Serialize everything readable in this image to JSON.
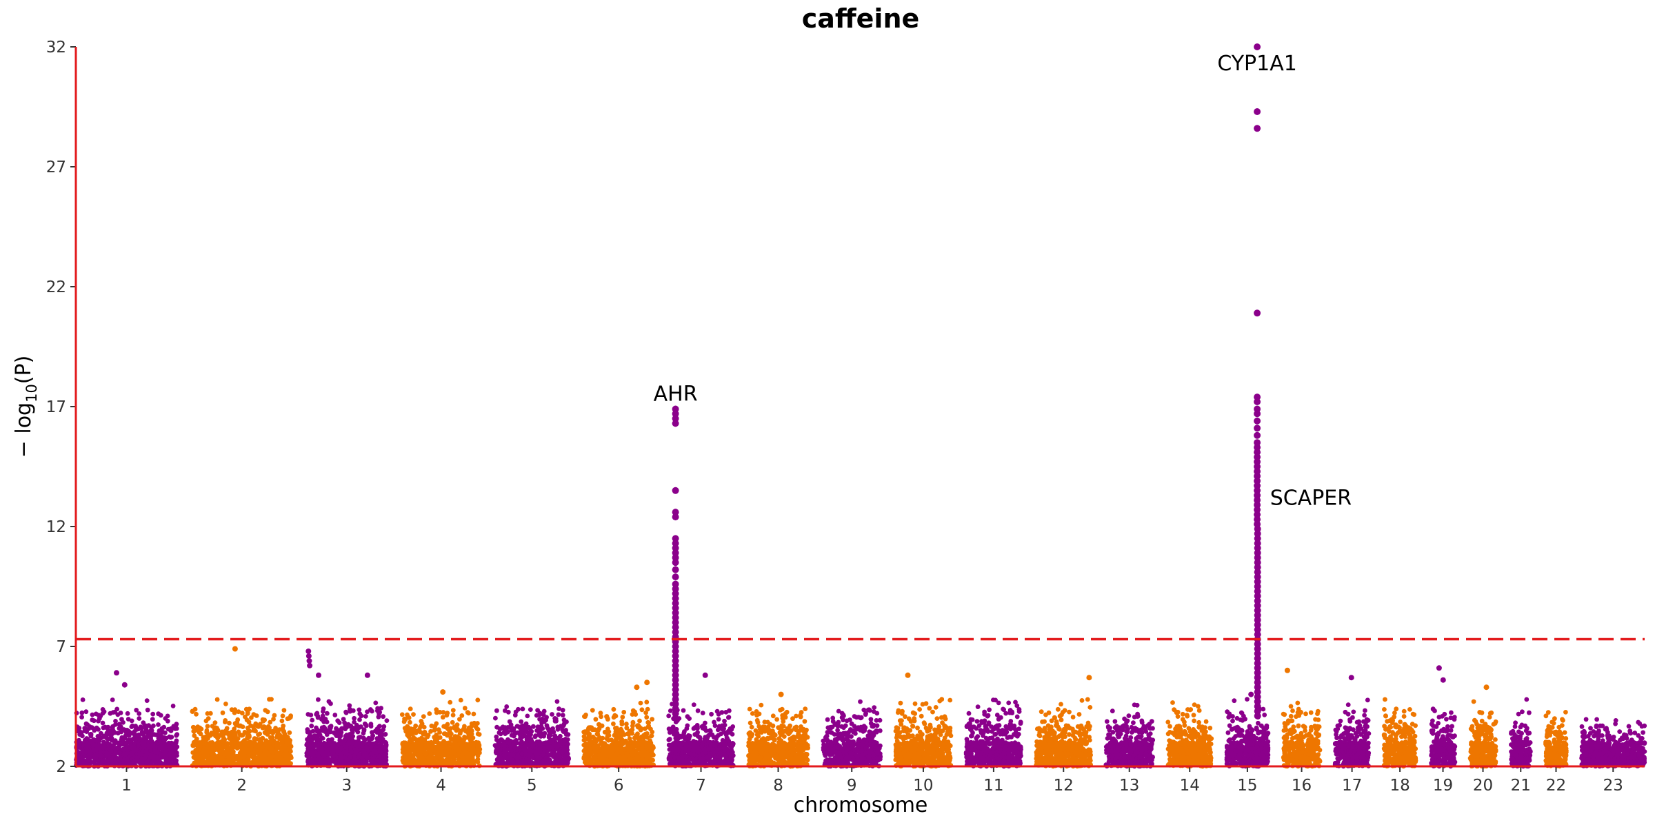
{
  "chart_data": {
    "type": "scatter",
    "title": "caffeine",
    "xlabel": "chromosome",
    "ylabel_main": "− log",
    "ylabel_sub": "10",
    "ylabel_tail": "(P)",
    "ylim": [
      2,
      32
    ],
    "yticks": [
      "2",
      "7",
      "12",
      "17",
      "22",
      "27",
      "32"
    ],
    "significance_line": 7.3,
    "colors": {
      "purple": "#8B008B",
      "orange": "#EE7600",
      "axis": "#E31A1C",
      "threshold": "#E31A1C"
    },
    "chromosomes": [
      {
        "label": "1",
        "len": 249,
        "color": "purple"
      },
      {
        "label": "2",
        "len": 243,
        "color": "orange"
      },
      {
        "label": "3",
        "len": 198,
        "color": "purple"
      },
      {
        "label": "4",
        "len": 191,
        "color": "orange"
      },
      {
        "label": "5",
        "len": 181,
        "color": "purple"
      },
      {
        "label": "6",
        "len": 171,
        "color": "orange"
      },
      {
        "label": "7",
        "len": 159,
        "color": "purple"
      },
      {
        "label": "8",
        "len": 146,
        "color": "orange"
      },
      {
        "label": "9",
        "len": 141,
        "color": "purple"
      },
      {
        "label": "10",
        "len": 136,
        "color": "orange"
      },
      {
        "label": "11",
        "len": 135,
        "color": "purple"
      },
      {
        "label": "12",
        "len": 134,
        "color": "orange"
      },
      {
        "label": "13",
        "len": 115,
        "color": "purple"
      },
      {
        "label": "14",
        "len": 107,
        "color": "orange"
      },
      {
        "label": "15",
        "len": 102,
        "color": "purple"
      },
      {
        "label": "16",
        "len": 90,
        "color": "orange"
      },
      {
        "label": "17",
        "len": 83,
        "color": "purple"
      },
      {
        "label": "18",
        "len": 78,
        "color": "orange"
      },
      {
        "label": "19",
        "len": 59,
        "color": "purple"
      },
      {
        "label": "20",
        "len": 63,
        "color": "orange"
      },
      {
        "label": "21",
        "len": 48,
        "color": "purple"
      },
      {
        "label": "22",
        "len": 51,
        "color": "orange"
      },
      {
        "label": "23",
        "len": 155,
        "color": "purple"
      }
    ],
    "peaks": [
      {
        "label": "AHR",
        "chr": "7",
        "pos": 17,
        "values": [
          16.9,
          16.7,
          16.5,
          16.3,
          13.5,
          12.6,
          12.4,
          11.5,
          11.3,
          11.1,
          10.9,
          10.7,
          10.5,
          10.2,
          9.9,
          9.6,
          9.4,
          9.2,
          9.0,
          8.8,
          8.6,
          8.4,
          8.2,
          8.0,
          7.8,
          7.6,
          7.4,
          7.2,
          7.0,
          6.8,
          6.6,
          6.4,
          6.2,
          6.0,
          5.8,
          5.6,
          5.4,
          5.2,
          5.0,
          4.8,
          4.6,
          4.4,
          4.2,
          4.0
        ]
      },
      {
        "label": "CYP1A1",
        "chr": "15",
        "pos": 75,
        "values": [
          32.0,
          29.3,
          28.6,
          20.9,
          17.4,
          17.2,
          16.9,
          16.7,
          16.4,
          16.1,
          15.8,
          15.5,
          15.3,
          15.1,
          14.9,
          14.7,
          14.5,
          14.3,
          14.1,
          13.9,
          13.7,
          13.5,
          13.3,
          13.1,
          12.9,
          12.7,
          12.5,
          12.3,
          12.1
        ]
      },
      {
        "label": "SCAPER",
        "chr": "15",
        "pos": 76,
        "values": [
          11.9,
          11.7,
          11.5,
          11.3,
          11.1,
          10.9,
          10.7,
          10.5,
          10.3,
          10.1,
          9.9,
          9.7,
          9.5,
          9.3,
          9.1,
          8.9,
          8.7,
          8.5,
          8.3,
          8.1,
          7.9,
          7.7,
          7.5,
          7.3,
          7.1,
          6.9,
          6.7,
          6.5,
          6.3,
          6.1,
          5.9,
          5.7,
          5.5,
          5.3,
          5.1,
          4.9,
          4.7,
          4.5,
          4.3,
          4.1
        ]
      }
    ],
    "notable_points": [
      {
        "chr": "1",
        "pos": 100,
        "y": 5.9
      },
      {
        "chr": "1",
        "pos": 120,
        "y": 5.4
      },
      {
        "chr": "2",
        "pos": 105,
        "y": 6.9
      },
      {
        "chr": "3",
        "pos": 5,
        "y": 6.8
      },
      {
        "chr": "3",
        "pos": 6,
        "y": 6.6
      },
      {
        "chr": "3",
        "pos": 7,
        "y": 6.4
      },
      {
        "chr": "3",
        "pos": 8,
        "y": 6.2
      },
      {
        "chr": "3",
        "pos": 30,
        "y": 5.8
      },
      {
        "chr": "3",
        "pos": 150,
        "y": 5.8
      },
      {
        "chr": "4",
        "pos": 100,
        "y": 5.1
      },
      {
        "chr": "6",
        "pos": 130,
        "y": 5.3
      },
      {
        "chr": "6",
        "pos": 155,
        "y": 5.5
      },
      {
        "chr": "7",
        "pos": 90,
        "y": 5.8
      },
      {
        "chr": "8",
        "pos": 80,
        "y": 5.0
      },
      {
        "chr": "10",
        "pos": 30,
        "y": 5.8
      },
      {
        "chr": "12",
        "pos": 130,
        "y": 5.7
      },
      {
        "chr": "15",
        "pos": 60,
        "y": 5.0
      },
      {
        "chr": "16",
        "pos": 10,
        "y": 6.0
      },
      {
        "chr": "17",
        "pos": 40,
        "y": 5.7
      },
      {
        "chr": "19",
        "pos": 20,
        "y": 6.1
      },
      {
        "chr": "19",
        "pos": 30,
        "y": 5.6
      },
      {
        "chr": "20",
        "pos": 40,
        "y": 5.3
      }
    ]
  }
}
